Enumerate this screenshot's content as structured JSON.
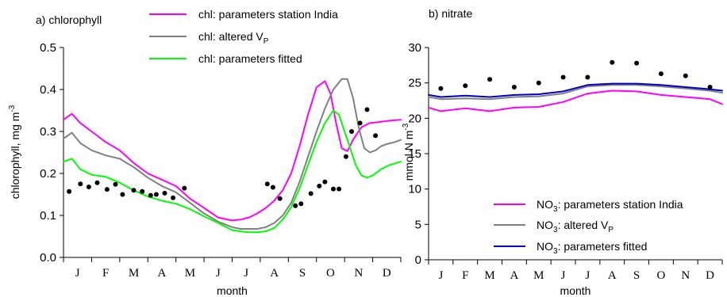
{
  "chart_data": [
    {
      "type": "line",
      "title": "a) chlorophyll",
      "xlabel": "month",
      "ylabel": "chlorophyll, mg m-3",
      "ylabel_parts": {
        "main": "chlorophyll, mg m",
        "sup": "-3"
      },
      "ylim": [
        0,
        0.5
      ],
      "yticks": [
        "0.0",
        "0.1",
        "0.2",
        "0.3",
        "0.4",
        "0.5"
      ],
      "xlim": [
        0,
        12
      ],
      "categories": [
        "J",
        "F",
        "M",
        "A",
        "M",
        "J",
        "J",
        "A",
        "S",
        "O",
        "N",
        "D"
      ],
      "legend_position": "top",
      "series": [
        {
          "name": "chl: parameters station India",
          "legend_parts": {
            "main": "chl: parameters station India"
          },
          "color": "#ff00ff",
          "x": [
            0,
            0.3,
            0.6,
            1.0,
            1.5,
            2.0,
            2.5,
            3.0,
            3.5,
            4.0,
            4.5,
            5.0,
            5.5,
            6.0,
            6.3,
            6.6,
            6.9,
            7.2,
            7.5,
            7.8,
            8.1,
            8.4,
            8.7,
            9.0,
            9.3,
            9.5,
            9.7,
            9.9,
            10.1,
            10.3,
            10.6,
            10.9,
            11.2,
            11.5,
            11.8,
            12.0
          ],
          "y": [
            0.328,
            0.342,
            0.32,
            0.3,
            0.275,
            0.255,
            0.225,
            0.2,
            0.185,
            0.17,
            0.14,
            0.118,
            0.095,
            0.088,
            0.09,
            0.095,
            0.105,
            0.118,
            0.135,
            0.16,
            0.2,
            0.265,
            0.34,
            0.405,
            0.42,
            0.39,
            0.32,
            0.26,
            0.253,
            0.28,
            0.31,
            0.32,
            0.322,
            0.325,
            0.327,
            0.328
          ]
        },
        {
          "name": "chl: altered VP",
          "legend_parts": {
            "main": "chl: altered V",
            "sub": "P"
          },
          "color": "#808080",
          "x": [
            0,
            0.3,
            0.6,
            1.0,
            1.5,
            2.0,
            2.5,
            3.0,
            3.5,
            4.0,
            4.5,
            5.0,
            5.5,
            6.0,
            6.3,
            6.6,
            6.9,
            7.2,
            7.5,
            7.8,
            8.1,
            8.4,
            8.7,
            9.0,
            9.3,
            9.6,
            9.9,
            10.1,
            10.3,
            10.5,
            10.7,
            10.9,
            11.1,
            11.3,
            11.5,
            11.8,
            12.0
          ],
          "y": [
            0.283,
            0.297,
            0.272,
            0.255,
            0.243,
            0.235,
            0.215,
            0.19,
            0.17,
            0.155,
            0.13,
            0.105,
            0.085,
            0.072,
            0.068,
            0.068,
            0.068,
            0.072,
            0.082,
            0.1,
            0.13,
            0.18,
            0.24,
            0.3,
            0.355,
            0.4,
            0.425,
            0.425,
            0.38,
            0.31,
            0.26,
            0.25,
            0.255,
            0.265,
            0.27,
            0.275,
            0.28
          ]
        },
        {
          "name": "chl: parameters fitted",
          "legend_parts": {
            "main": "chl: parameters fitted"
          },
          "color": "#00ff00",
          "x": [
            0,
            0.3,
            0.6,
            1.0,
            1.5,
            2.0,
            2.5,
            3.0,
            3.5,
            4.0,
            4.5,
            5.0,
            5.5,
            6.0,
            6.3,
            6.6,
            6.9,
            7.2,
            7.5,
            7.8,
            8.1,
            8.4,
            8.7,
            9.0,
            9.3,
            9.6,
            9.8,
            10.0,
            10.2,
            10.4,
            10.6,
            10.8,
            11.0,
            11.3,
            11.6,
            12.0
          ],
          "y": [
            0.228,
            0.235,
            0.21,
            0.197,
            0.192,
            0.178,
            0.16,
            0.145,
            0.135,
            0.128,
            0.115,
            0.098,
            0.082,
            0.065,
            0.062,
            0.06,
            0.06,
            0.062,
            0.07,
            0.09,
            0.12,
            0.165,
            0.22,
            0.275,
            0.32,
            0.35,
            0.34,
            0.3,
            0.26,
            0.22,
            0.195,
            0.19,
            0.195,
            0.21,
            0.22,
            0.228
          ]
        }
      ],
      "observations": {
        "x": [
          0.2,
          0.6,
          0.9,
          1.2,
          1.55,
          1.85,
          2.1,
          2.5,
          2.8,
          3.1,
          3.3,
          3.6,
          3.9,
          4.3,
          7.25,
          7.45,
          7.7,
          8.25,
          8.45,
          8.8,
          9.1,
          9.3,
          9.6,
          9.8,
          10.05,
          10.25,
          10.55,
          10.8,
          11.1
        ],
        "y": [
          0.157,
          0.175,
          0.168,
          0.178,
          0.162,
          0.174,
          0.15,
          0.16,
          0.157,
          0.148,
          0.15,
          0.153,
          0.142,
          0.165,
          0.175,
          0.167,
          0.14,
          0.123,
          0.128,
          0.152,
          0.17,
          0.18,
          0.163,
          0.163,
          0.24,
          0.3,
          0.32,
          0.352,
          0.29
        ]
      }
    },
    {
      "type": "line",
      "title": "b) nitrate",
      "xlabel": "month",
      "ylabel": "mmol N m-3",
      "ylabel_parts": {
        "main": "mmol N m",
        "sup": "-3"
      },
      "ylim": [
        0,
        30
      ],
      "yticks": [
        "0",
        "5",
        "10",
        "15",
        "20",
        "25",
        "30"
      ],
      "xlim": [
        0,
        12
      ],
      "categories": [
        "J",
        "F",
        "M",
        "A",
        "M",
        "J",
        "J",
        "A",
        "S",
        "O",
        "N",
        "D"
      ],
      "legend_position": "bottom-right",
      "series": [
        {
          "name": "NO3: parameters station India",
          "legend_parts": {
            "pre": "NO",
            "sub": "3",
            "main": ": parameters station India"
          },
          "color": "#ff00ff",
          "x": [
            0,
            0.5,
            1.5,
            2.5,
            3.5,
            4.5,
            5.5,
            6.5,
            7.5,
            8.5,
            9.5,
            10.5,
            11.5,
            12.0
          ],
          "y": [
            21.5,
            21.0,
            21.4,
            21.0,
            21.5,
            21.6,
            22.3,
            23.5,
            23.9,
            23.8,
            23.3,
            23.0,
            22.7,
            22.0
          ]
        },
        {
          "name": "NO3: altered VP",
          "legend_parts": {
            "pre": "NO",
            "sub": "3",
            "main": ": altered V",
            "sub2": "P"
          },
          "color": "#808080",
          "x": [
            0,
            0.5,
            1.5,
            2.5,
            3.5,
            4.5,
            5.5,
            6.5,
            7.5,
            8.5,
            9.5,
            10.5,
            11.5,
            12.0
          ],
          "y": [
            23.0,
            22.7,
            22.8,
            22.7,
            23.0,
            23.1,
            23.5,
            24.5,
            24.7,
            24.7,
            24.5,
            24.2,
            23.9,
            23.6
          ]
        },
        {
          "name": "NO3: parameters fitted",
          "legend_parts": {
            "pre": "NO",
            "sub": "3",
            "main": ": parameters fitted"
          },
          "color": "#0000cc",
          "x": [
            0,
            0.5,
            1.5,
            2.5,
            3.5,
            4.5,
            5.5,
            6.5,
            7.5,
            8.5,
            9.5,
            10.5,
            11.5,
            12.0
          ],
          "y": [
            23.3,
            23.0,
            23.2,
            23.0,
            23.3,
            23.4,
            23.8,
            24.7,
            24.9,
            24.9,
            24.7,
            24.4,
            24.1,
            23.9
          ]
        }
      ],
      "observations": {
        "x": [
          0.5,
          1.5,
          2.5,
          3.5,
          4.5,
          5.5,
          6.5,
          7.5,
          8.5,
          9.5,
          10.5,
          11.5
        ],
        "y": [
          24.2,
          24.6,
          25.5,
          24.4,
          25.0,
          25.8,
          25.8,
          27.9,
          27.8,
          26.3,
          26.0,
          24.4
        ]
      }
    }
  ]
}
